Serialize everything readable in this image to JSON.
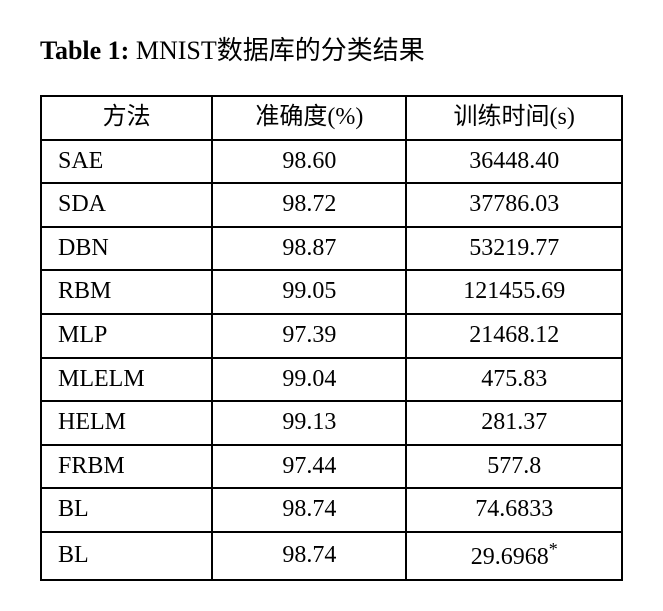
{
  "caption": {
    "label": "Table 1:",
    "text": "MNIST数据库的分类结果"
  },
  "table": {
    "columns": [
      "方法",
      "准确度(%)",
      "训练时间(s)"
    ],
    "rows": [
      {
        "method": "SAE",
        "accuracy": "98.60",
        "time": "36448.40",
        "star": false
      },
      {
        "method": "SDA",
        "accuracy": "98.72",
        "time": "37786.03",
        "star": false
      },
      {
        "method": "DBN",
        "accuracy": "98.87",
        "time": "53219.77",
        "star": false
      },
      {
        "method": "RBM",
        "accuracy": "99.05",
        "time": "121455.69",
        "star": false
      },
      {
        "method": "MLP",
        "accuracy": "97.39",
        "time": "21468.12",
        "star": false
      },
      {
        "method": "MLELM",
        "accuracy": "99.04",
        "time": "475.83",
        "star": false
      },
      {
        "method": "HELM",
        "accuracy": "99.13",
        "time": "281.37",
        "star": false
      },
      {
        "method": "FRBM",
        "accuracy": "97.44",
        "time": "577.8",
        "star": false
      },
      {
        "method": "BL",
        "accuracy": "98.74",
        "time": "74.6833",
        "star": false
      },
      {
        "method": "BL",
        "accuracy": "98.74",
        "time": "29.6968",
        "star": true
      }
    ],
    "border_color": "#000000",
    "background_color": "#ffffff",
    "font_family": "Times New Roman, SimSun, serif",
    "header_fontsize": 24,
    "cell_fontsize": 24
  }
}
